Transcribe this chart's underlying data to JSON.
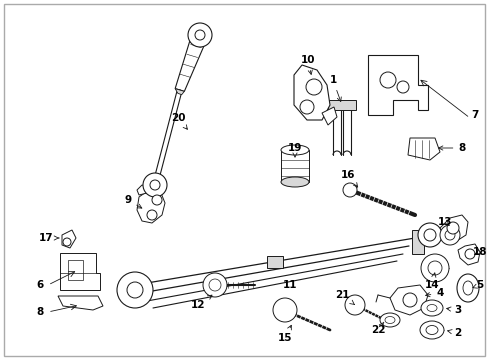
{
  "background_color": "#ffffff",
  "fig_width": 4.89,
  "fig_height": 3.6,
  "dpi": 100,
  "lc": "#1a1a1a",
  "label_fontsize": 7.5,
  "label_color": "#000000"
}
